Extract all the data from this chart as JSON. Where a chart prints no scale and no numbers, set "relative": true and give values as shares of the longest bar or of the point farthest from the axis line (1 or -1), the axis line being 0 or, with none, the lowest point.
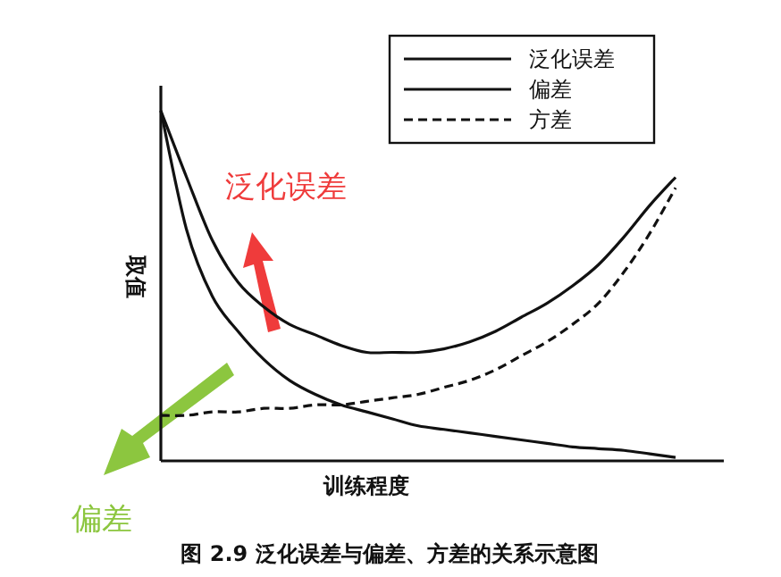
{
  "chart_data": {
    "type": "line",
    "relative": true,
    "categories": [
      null,
      null,
      null,
      null,
      null,
      null,
      null,
      null,
      null,
      null,
      null,
      null,
      null,
      null,
      null,
      null,
      null,
      null,
      null,
      null,
      null
    ],
    "xlabel": "训练程度",
    "ylabel": "取值",
    "legend": "top right",
    "marker": "none",
    "series": [
      {
        "name": "泛化误差",
        "color": "#111111",
        "line_style": "solid",
        "values": [
          1.0,
          0.81,
          0.63,
          0.51,
          0.44,
          0.39,
          0.36,
          0.33,
          0.31,
          0.31,
          0.31,
          0.32,
          0.34,
          0.37,
          0.41,
          0.45,
          0.5,
          0.56,
          0.64,
          0.73,
          0.81
        ]
      },
      {
        "name": "偏差",
        "color": "#111111",
        "line_style": "solid",
        "values": [
          1.0,
          0.66,
          0.47,
          0.37,
          0.29,
          0.23,
          0.19,
          0.16,
          0.14,
          0.12,
          0.1,
          0.09,
          0.08,
          0.07,
          0.06,
          0.05,
          0.04,
          0.035,
          0.03,
          0.02,
          0.01
        ]
      },
      {
        "name": "方差",
        "color": "#111111",
        "line_style": "dashed",
        "values": [
          0.13,
          0.13,
          0.14,
          0.14,
          0.15,
          0.15,
          0.16,
          0.16,
          0.17,
          0.18,
          0.19,
          0.21,
          0.23,
          0.26,
          0.3,
          0.34,
          0.39,
          0.45,
          0.54,
          0.65,
          0.78
        ]
      }
    ],
    "annotations": [
      "泛化误差",
      "偏差",
      "图 2.9  泛化误差与偏差、方差的关系示意图"
    ]
  }
}
